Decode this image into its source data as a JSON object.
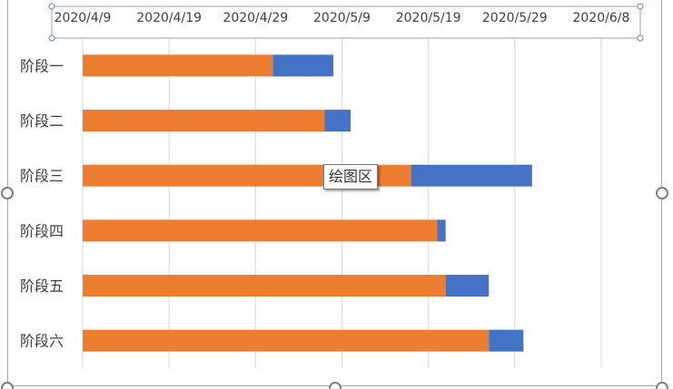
{
  "tooltip": {
    "text": "绘图区"
  },
  "colors": {
    "offset": "#ed7d31",
    "duration": "#4472c4",
    "grid": "#d9d9d9",
    "frame": "#a6a6a6"
  },
  "chart_data": {
    "type": "bar",
    "orientation": "horizontal",
    "stacked": true,
    "categories": [
      "阶段一",
      "阶段二",
      "阶段三",
      "阶段四",
      "阶段五",
      "阶段六"
    ],
    "series": [
      {
        "values": [
          "2020/4/31",
          "2020/5/7",
          "2020/5/17",
          "2020/5/20",
          "2020/5/21",
          "2020/5/26"
        ],
        "color": "#ed7d31"
      },
      {
        "values": [
          7,
          3,
          14,
          1,
          5,
          4
        ],
        "color": "#4472c4"
      }
    ],
    "value_axis": {
      "position": "top",
      "min": "2020/4/9",
      "max": "2020/6/12",
      "major_unit_days": 10,
      "tick_labels": [
        "2020/4/9",
        "2020/4/19",
        "2020/4/29",
        "2020/5/9",
        "2020/5/19",
        "2020/5/29",
        "2020/6/8"
      ]
    },
    "grid": true,
    "legend": "none"
  }
}
